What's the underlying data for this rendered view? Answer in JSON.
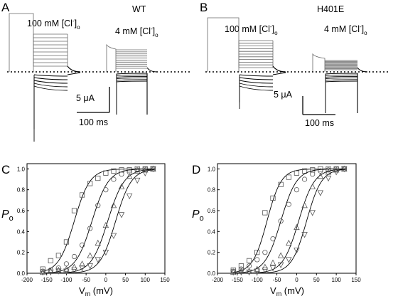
{
  "panel_labels": [
    "A",
    "B",
    "C",
    "D"
  ],
  "traces": [
    {
      "panel": "A",
      "genotype": "WT",
      "high_cl_label": "100 mM [Cl",
      "low_cl_label": "4 mM [Cl",
      "ion_sup": "-",
      "ion_sub": "o",
      "scale_current": "5 μA",
      "scale_time": "100 ms"
    },
    {
      "panel": "B",
      "genotype": "H401E",
      "high_cl_label": "100 mM [Cl",
      "low_cl_label": "4 mM [Cl",
      "ion_sup": "-",
      "ion_sub": "o",
      "scale_current": "5 μA",
      "scale_time": "100 ms"
    }
  ],
  "chart_data": [
    {
      "panel": "C",
      "type": "scatter",
      "ylabel_main": "P",
      "ylabel_sub": "o",
      "xlabel_main": "V",
      "xlabel_sub": "m",
      "xlabel_unit": " (mV)",
      "xlim": [
        -200,
        150
      ],
      "ylim": [
        0.0,
        1.05
      ],
      "xticks": [
        -200,
        -150,
        -100,
        -50,
        0,
        50,
        100,
        150
      ],
      "yticks": [
        0.0,
        0.2,
        0.4,
        0.6,
        0.8,
        1.0
      ],
      "series": [
        {
          "marker": "square",
          "v_half": -80,
          "slope": 20,
          "x": [
            -160,
            -140,
            -120,
            -100,
            -80,
            -60,
            -40,
            -20,
            0,
            20,
            40,
            60,
            80,
            100,
            120
          ],
          "y": [
            0.04,
            0.12,
            0.17,
            0.3,
            0.6,
            0.75,
            0.86,
            0.91,
            0.96,
            0.98,
            0.99,
            0.99,
            1.0,
            1.0,
            1.0
          ]
        },
        {
          "marker": "circle",
          "v_half": -35,
          "slope": 21,
          "x": [
            -160,
            -140,
            -120,
            -100,
            -80,
            -60,
            -40,
            -20,
            0,
            20,
            40,
            60,
            80,
            100,
            120
          ],
          "y": [
            0.02,
            0.03,
            0.05,
            0.09,
            0.16,
            0.27,
            0.43,
            0.65,
            0.8,
            0.9,
            0.95,
            0.97,
            0.99,
            1.0,
            1.0
          ]
        },
        {
          "marker": "triangle-up",
          "v_half": 5,
          "slope": 21,
          "x": [
            -160,
            -140,
            -120,
            -100,
            -80,
            -60,
            -40,
            -20,
            0,
            20,
            40,
            60,
            80,
            100,
            120
          ],
          "y": [
            0.01,
            0.02,
            0.03,
            0.04,
            0.06,
            0.09,
            0.17,
            0.29,
            0.46,
            0.65,
            0.83,
            0.93,
            0.98,
            0.99,
            1.0
          ]
        },
        {
          "marker": "triangle-down",
          "v_half": 25,
          "slope": 20,
          "x": [
            -160,
            -140,
            -120,
            -100,
            -80,
            -60,
            -40,
            -20,
            0,
            20,
            40,
            60,
            80,
            100,
            120
          ],
          "y": [
            0.01,
            0.01,
            0.02,
            0.02,
            0.03,
            0.05,
            0.07,
            0.13,
            0.2,
            0.36,
            0.56,
            0.74,
            0.89,
            0.96,
            1.0
          ]
        }
      ]
    },
    {
      "panel": "D",
      "type": "scatter",
      "ylabel_main": "P",
      "ylabel_sub": "o",
      "xlabel_main": "V",
      "xlabel_sub": "m",
      "xlabel_unit": " (mV)",
      "xlim": [
        -200,
        150
      ],
      "ylim": [
        0.0,
        1.05
      ],
      "xticks": [
        -200,
        -150,
        -100,
        -50,
        0,
        50,
        100,
        150
      ],
      "yticks": [
        0.0,
        0.2,
        0.4,
        0.6,
        0.8,
        1.0
      ],
      "series": [
        {
          "marker": "square",
          "v_half": -75,
          "slope": 18,
          "x": [
            -160,
            -140,
            -120,
            -100,
            -80,
            -60,
            -40,
            -20,
            0,
            20,
            40,
            60,
            80,
            100,
            120
          ],
          "y": [
            0.03,
            0.07,
            0.12,
            0.2,
            0.58,
            0.72,
            0.85,
            0.92,
            0.96,
            0.98,
            0.99,
            1.0,
            1.0,
            1.0,
            1.0
          ]
        },
        {
          "marker": "circle",
          "v_half": -40,
          "slope": 20,
          "x": [
            -160,
            -140,
            -120,
            -100,
            -80,
            -60,
            -40,
            -20,
            0,
            20,
            40,
            60,
            80,
            100,
            120
          ],
          "y": [
            0.02,
            0.04,
            0.07,
            0.13,
            0.2,
            0.33,
            0.5,
            0.66,
            0.8,
            0.9,
            0.95,
            0.98,
            0.99,
            1.0,
            1.0
          ]
        },
        {
          "marker": "triangle-up",
          "v_half": 5,
          "slope": 20,
          "x": [
            -160,
            -140,
            -120,
            -100,
            -80,
            -60,
            -40,
            -20,
            0,
            20,
            40,
            60,
            80,
            100,
            120
          ],
          "y": [
            0.01,
            0.02,
            0.02,
            0.04,
            0.06,
            0.1,
            0.17,
            0.29,
            0.44,
            0.65,
            0.83,
            0.93,
            0.97,
            0.99,
            1.0
          ]
        },
        {
          "marker": "triangle-down",
          "v_half": 25,
          "slope": 19,
          "x": [
            -160,
            -140,
            -120,
            -100,
            -80,
            -60,
            -40,
            -20,
            0,
            20,
            40,
            60,
            80,
            100,
            120
          ],
          "y": [
            0.01,
            0.01,
            0.01,
            0.02,
            0.03,
            0.05,
            0.08,
            0.13,
            0.22,
            0.37,
            0.58,
            0.77,
            0.91,
            0.97,
            1.0
          ]
        }
      ]
    }
  ]
}
